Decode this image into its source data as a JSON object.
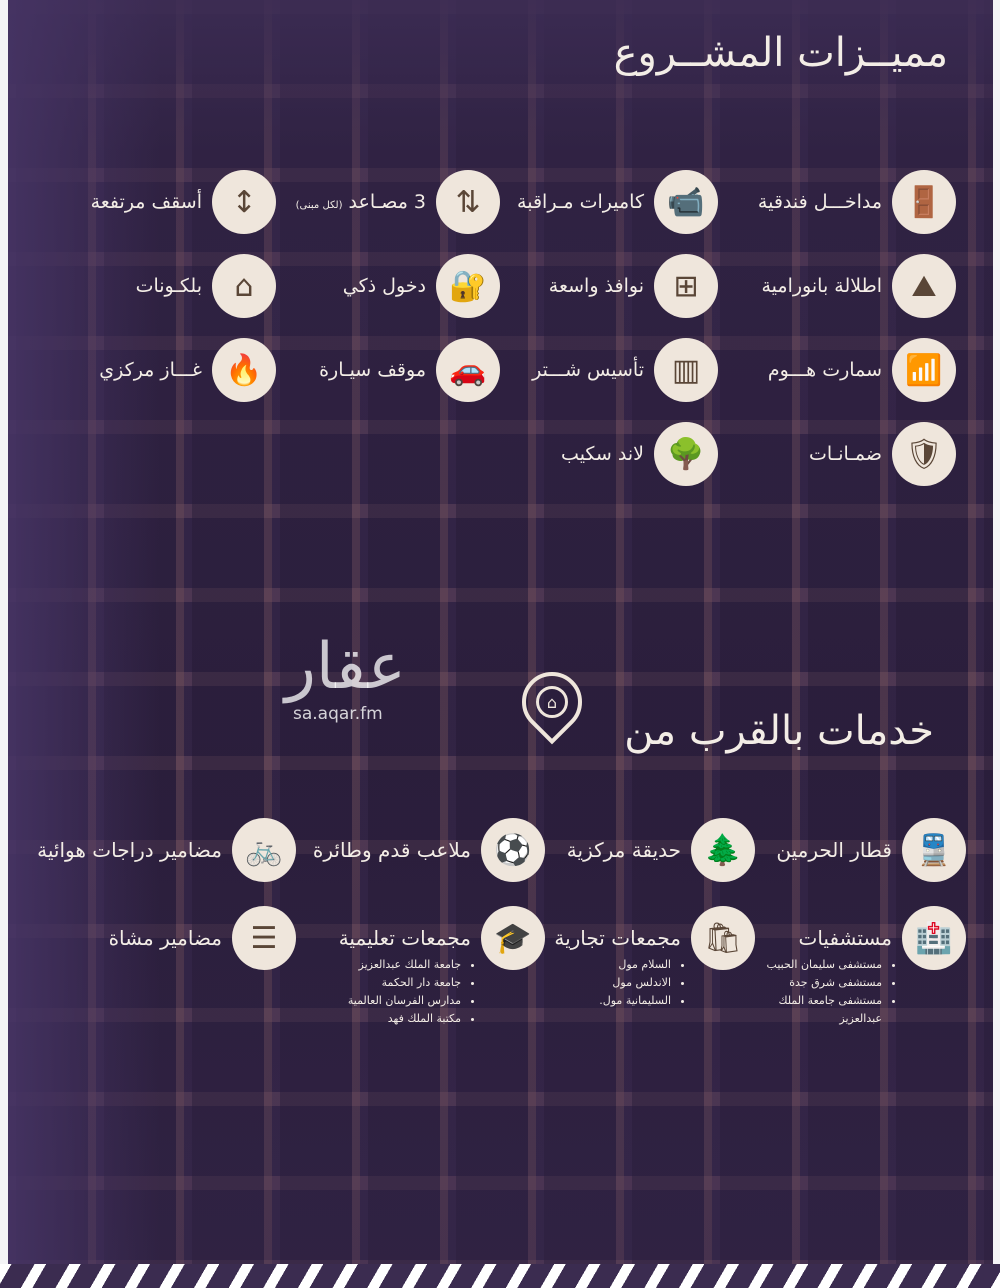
{
  "features_title": "مميــزات المشــروع",
  "features": [
    {
      "label": "مداخـــل فندقية",
      "icon": "door-icon",
      "glyph": "🚪"
    },
    {
      "label": "كاميرات مـراقبة",
      "icon": "camera-icon",
      "glyph": "📹"
    },
    {
      "label": "3 مصـاعد",
      "note": "(لكل مبنى)",
      "icon": "elevator-icon",
      "glyph": "⇅"
    },
    {
      "label": "أسقف مرتفعة",
      "icon": "ceiling-height-icon",
      "glyph": "↕"
    },
    {
      "label": "اطلالة بانورامية",
      "icon": "panorama-icon",
      "glyph": "⛰"
    },
    {
      "label": "نوافذ واسعة",
      "icon": "window-icon",
      "glyph": "⊞"
    },
    {
      "label": "دخول ذكي",
      "icon": "smart-lock-icon",
      "glyph": "🔐"
    },
    {
      "label": "بلكـونات",
      "icon": "balcony-icon",
      "glyph": "⌂"
    },
    {
      "label": "سمارت هـــوم",
      "icon": "smart-home-icon",
      "glyph": "📶"
    },
    {
      "label": "تأسيس شـــتر",
      "icon": "shutter-icon",
      "glyph": "▥"
    },
    {
      "label": "موقف سيـارة",
      "icon": "parking-icon",
      "glyph": "🚗"
    },
    {
      "label": "غـــاز مركزي",
      "icon": "gas-cylinder-icon",
      "glyph": "🔥"
    },
    {
      "label": "ضمـانـات",
      "icon": "shield-icon",
      "glyph": "🛡"
    },
    {
      "label": "لاند سكيب",
      "icon": "landscape-icon",
      "glyph": "🌳"
    }
  ],
  "services_title": "خدمات بالقرب من",
  "services": [
    {
      "label": "قطار الحرمين",
      "icon": "train-icon",
      "glyph": "🚆"
    },
    {
      "label": "حديقة مركزية",
      "icon": "park-icon",
      "glyph": "🌲"
    },
    {
      "label": "ملاعب قدم وطائرة",
      "icon": "field-icon",
      "glyph": "⚽"
    },
    {
      "label": "مضامير دراجات هوائية",
      "icon": "bicycle-icon",
      "glyph": "🚲"
    },
    {
      "label": "مستشفيات",
      "icon": "hospital-icon",
      "glyph": "🏥",
      "list": [
        "مستشفى سليمان الحبيب",
        "مستشفى شرق جدة",
        "مستشفى جامعة الملك",
        "عبدالعزيز"
      ]
    },
    {
      "label": "مجمعات تجارية",
      "icon": "shopping-bag-icon",
      "glyph": "🛍",
      "list": [
        "السلام مول",
        "الاندلس مول",
        "السليمانية مول."
      ]
    },
    {
      "label": "مجمعات تعليمية",
      "icon": "education-icon",
      "glyph": "🎓",
      "list": [
        "جامعة الملك عبدالعزيز",
        "جامعة دار الحكمة",
        "مدارس الفرسان العالمية",
        "مكتبة الملك فهد"
      ]
    },
    {
      "label": "مضامير مشاة",
      "icon": "walkway-icon",
      "glyph": "☰"
    }
  ],
  "watermark": {
    "logo": "عقار",
    "url": "sa.aqar.fm"
  },
  "colors": {
    "background": "#3b2c50",
    "circle": "#efe6dc",
    "icon": "#5a4637"
  }
}
